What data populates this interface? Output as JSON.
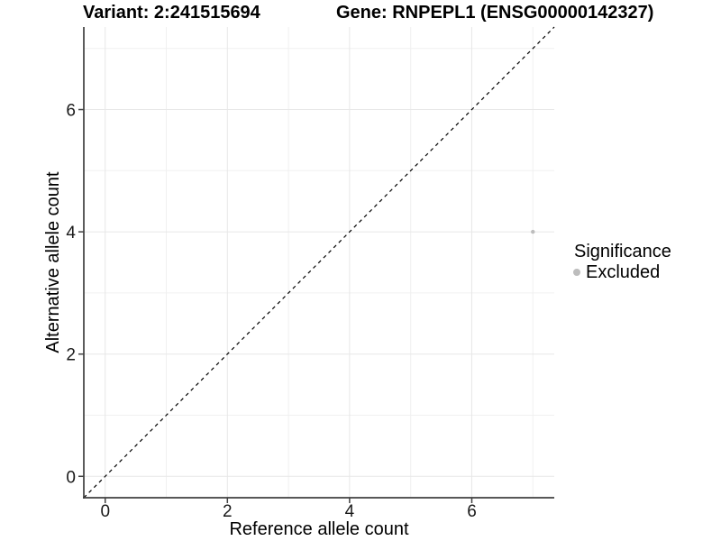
{
  "chart_data": {
    "type": "scatter",
    "title_left": "Variant: 2:241515694",
    "title_right": "Gene: RNPEPL1 (ENSG00000142327)",
    "xlabel": "Reference allele count",
    "ylabel": "Alternative allele count",
    "xlim": [
      -0.35,
      7.35
    ],
    "ylim": [
      -0.35,
      7.35
    ],
    "x_ticks": [
      0,
      2,
      4,
      6
    ],
    "y_ticks": [
      0,
      2,
      4,
      6
    ],
    "x_minor_ticks": [
      1,
      3,
      5,
      7
    ],
    "y_minor_ticks": [
      1,
      3,
      5,
      7
    ],
    "grid": "major and minor, light gray on white panel",
    "identity_line": {
      "slope": 1,
      "intercept": 0,
      "style": "dashed",
      "color": "#000000"
    },
    "series": [
      {
        "name": "Excluded",
        "color": "#bdbdbd",
        "points": [
          {
            "x": 7,
            "y": 4
          }
        ]
      }
    ],
    "legend": {
      "title": "Significance",
      "position": "right",
      "items": [
        {
          "label": "Excluded",
          "color": "#bdbdbd"
        }
      ]
    },
    "colors": {
      "grid_major": "#e7e7e7",
      "grid_minor": "#f0f0f0",
      "axis_line": "#404040",
      "tick_text": "#1a1a1a",
      "point": "#bdbdbd"
    }
  }
}
